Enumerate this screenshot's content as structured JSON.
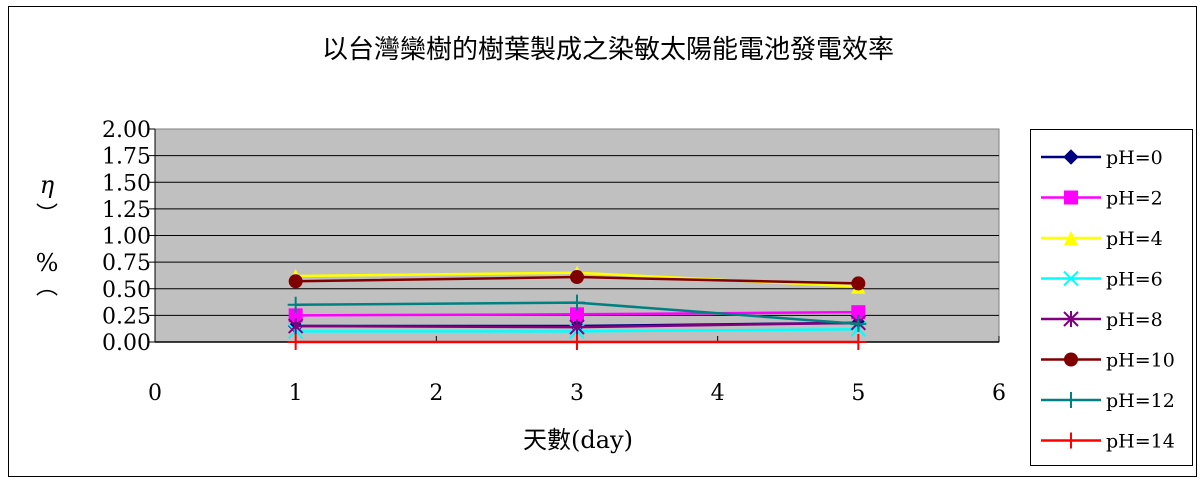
{
  "chart_data": {
    "type": "line",
    "title": "以台灣欒樹的樹葉製成之染敏太陽能電池發電效率",
    "xlabel": "天數(day)",
    "ylabel": "η（%）",
    "xlim": [
      0,
      6
    ],
    "ylim": [
      0,
      2
    ],
    "x_ticks": [
      "0",
      "1",
      "2",
      "3",
      "4",
      "5",
      "6"
    ],
    "y_ticks": [
      "0.00",
      "0.25",
      "0.50",
      "0.75",
      "1.00",
      "1.25",
      "1.50",
      "1.75",
      "2.00"
    ],
    "grid": true,
    "legend_position": "right",
    "plot_background": "#c0c0c0",
    "x": [
      1,
      3,
      5
    ],
    "series": [
      {
        "name": "pH=0",
        "values": [
          0.15,
          0.15,
          0.18
        ],
        "color": "#000080",
        "marker": "diamond"
      },
      {
        "name": "pH=2",
        "values": [
          0.25,
          0.26,
          0.28
        ],
        "color": "#ff00ff",
        "marker": "square"
      },
      {
        "name": "pH=4",
        "values": [
          0.62,
          0.65,
          0.52
        ],
        "color": "#ffff00",
        "marker": "triangle"
      },
      {
        "name": "pH=6",
        "values": [
          0.1,
          0.1,
          0.12
        ],
        "color": "#00ffff",
        "marker": "x"
      },
      {
        "name": "pH=8",
        "values": [
          0.15,
          0.14,
          0.18
        ],
        "color": "#800080",
        "marker": "star"
      },
      {
        "name": "pH=10",
        "values": [
          0.57,
          0.61,
          0.55
        ],
        "color": "#800000",
        "marker": "circle"
      },
      {
        "name": "pH=12",
        "values": [
          0.35,
          0.37,
          0.17
        ],
        "color": "#008080",
        "marker": "plus"
      },
      {
        "name": "pH=14",
        "values": [
          0.0,
          0.0,
          0.0
        ],
        "color": "#ff0000",
        "marker": "plus"
      }
    ]
  }
}
